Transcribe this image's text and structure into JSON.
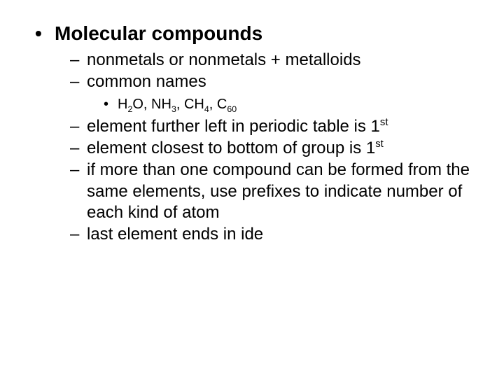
{
  "slide": {
    "background_color": "#ffffff",
    "text_color": "#000000",
    "font_family": "Arial",
    "title": {
      "text": "Molecular compounds",
      "fontsize": 28,
      "bold": true,
      "bullet": "disc"
    },
    "level2_style": {
      "fontsize": 24,
      "bold": false,
      "bullet": "dash"
    },
    "level3_style": {
      "fontsize": 20,
      "bold": false,
      "bullet": "disc"
    },
    "items": [
      {
        "text": "nonmetals or nonmetals + metalloids"
      },
      {
        "text": "common names"
      },
      {
        "formulas_line": {
          "parts": [
            {
              "base": "H",
              "sub": "2"
            },
            {
              "base": "O"
            },
            {
              "sep": ", "
            },
            {
              "base": "NH",
              "sub": "3"
            },
            {
              "sep": ", "
            },
            {
              "base": "CH",
              "sub": "4"
            },
            {
              "sep": ", "
            },
            {
              "base": "C",
              "sub": "60"
            }
          ]
        }
      },
      {
        "text_pre": "element further left in periodic table is 1",
        "sup": "st"
      },
      {
        "text_pre": "element closest to bottom of group is 1",
        "sup": "st"
      },
      {
        "text": "if more than one compound can be formed from the same elements, use prefixes to indicate number of each kind of atom"
      },
      {
        "text": "last element ends in ide"
      }
    ]
  }
}
